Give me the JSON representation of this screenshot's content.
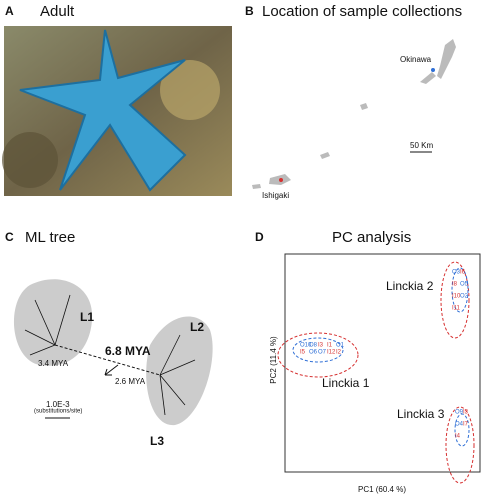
{
  "panels": [
    {
      "letter": "A",
      "title": "Adult"
    },
    {
      "letter": "B",
      "title": "Location of sample collections",
      "places": [
        "Okinawa",
        "Ishigaki"
      ],
      "scale": "50 Km"
    },
    {
      "letter": "C",
      "title": "ML tree",
      "clades": [
        "L1",
        "L2",
        "L3"
      ],
      "ages": [
        "6.8 MYA",
        "3.4 MYA",
        "2.6 MYA"
      ],
      "scale": "1.0E-3",
      "scale_unit": "(substitutions/site)"
    },
    {
      "letter": "D",
      "title": "PC analysis",
      "x_label": "PC1 (60.4 %)",
      "y_label": "PC2 (11.4 %)",
      "groups": [
        "Linckia 1",
        "Linckia 2",
        "Linckia 3"
      ],
      "points": [
        [
          "O10",
          "O8",
          "I3",
          "I1",
          "O1",
          "I5",
          "O6",
          "O7",
          "I12",
          "I2"
        ],
        [
          "O3",
          "I6",
          "I8",
          "O5",
          "I10",
          "O2",
          "I11"
        ],
        [
          "O9",
          "I3",
          "O4",
          "I7",
          "I4"
        ]
      ]
    }
  ]
}
